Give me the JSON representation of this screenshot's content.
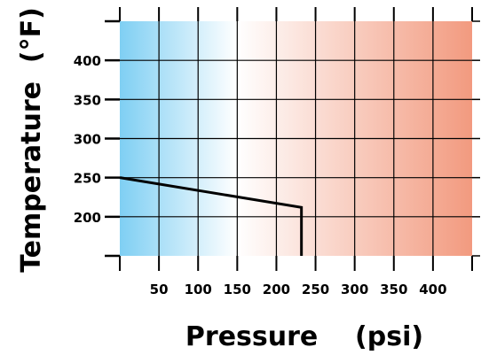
{
  "chart_data": {
    "type": "line",
    "xlabel": "Pressure    (psi)",
    "ylabel": "Temperature  (°F)",
    "xlim": [
      0,
      450
    ],
    "ylim": [
      150,
      450
    ],
    "xticks": [
      50,
      100,
      150,
      200,
      250,
      300,
      350,
      400
    ],
    "yticks": [
      200,
      250,
      300,
      350,
      400
    ],
    "grid": true,
    "background_gradient": [
      "#7fcff3",
      "#ffffff",
      "#f29a7f"
    ],
    "series": [
      {
        "color": "#000000",
        "points": [
          [
            0,
            250
          ],
          [
            232,
            212
          ],
          [
            232,
            150
          ]
        ]
      }
    ]
  }
}
